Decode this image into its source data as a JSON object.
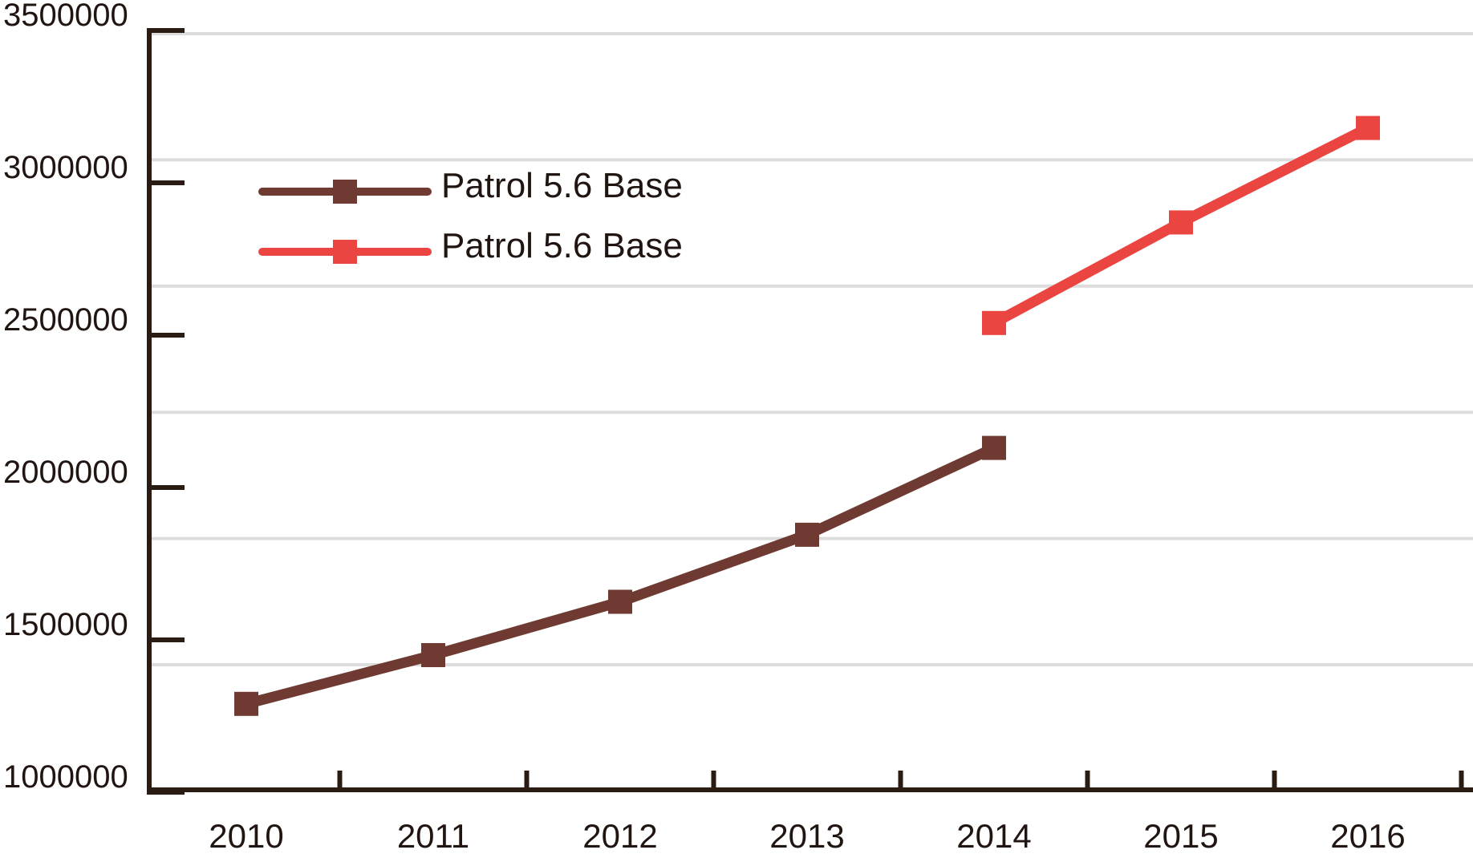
{
  "chart_data": {
    "type": "line",
    "title": "",
    "xlabel": "",
    "ylabel": "",
    "x_categories": [
      2010,
      2011,
      2012,
      2013,
      2014,
      2015,
      2016
    ],
    "x_tick_labels": [
      "2010",
      "2011",
      "2012",
      "2013",
      "2014",
      "2015",
      "2016"
    ],
    "y_tick_labels": [
      "3500000",
      "3000000",
      "2500000",
      "2000000",
      "1500000",
      "1000000"
    ],
    "y_tick_values": [
      3500000,
      3000000,
      2500000,
      2000000,
      1500000,
      1000000
    ],
    "ylim": [
      1000000,
      3500000
    ],
    "y_tick_step": 500000,
    "grid": "horizontal",
    "legend_position": "inside-top-left",
    "series": [
      {
        "name": "Patrol 5.6 Base",
        "color": "#6f3a31",
        "marker": "square",
        "points": [
          {
            "x": 2010,
            "y": 1290000
          },
          {
            "x": 2011,
            "y": 1450000
          },
          {
            "x": 2012,
            "y": 1625000
          },
          {
            "x": 2013,
            "y": 1845000
          },
          {
            "x": 2014,
            "y": 2130000
          }
        ]
      },
      {
        "name": "Patrol 5.6 Base",
        "color": "#ea4540",
        "marker": "square",
        "points": [
          {
            "x": 2014,
            "y": 2540000
          },
          {
            "x": 2015,
            "y": 2870000
          },
          {
            "x": 2016,
            "y": 3180000
          }
        ]
      }
    ],
    "legend": {
      "items": [
        {
          "label": "Patrol 5.6 Base",
          "color": "#6f3a31"
        },
        {
          "label": "Patrol 5.6 Base",
          "color": "#ea4540"
        }
      ]
    }
  },
  "colors": {
    "background": "#ffffff",
    "axis": "#2a1c12",
    "label_text": "#201510",
    "gridline": "#dcdcdc",
    "series1": "#6f3a31",
    "series2": "#ea4540"
  }
}
